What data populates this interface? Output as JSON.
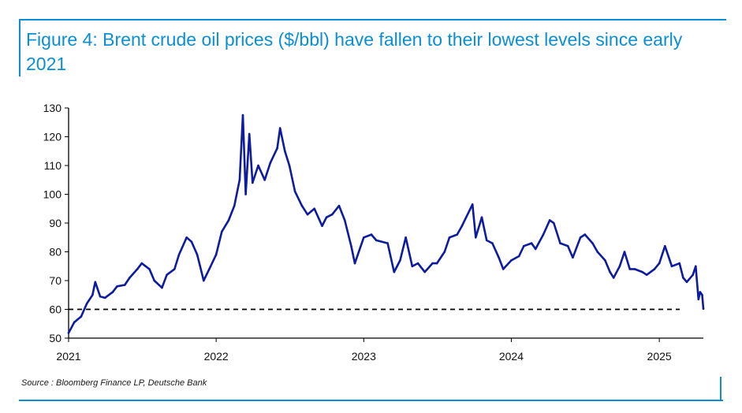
{
  "title": "Figure 4: Brent crude oil prices ($/bbl) have fallen to their lowest levels since early 2021",
  "source": "Source : Bloomberg Finance LP, Deutsche Bank",
  "colors": {
    "accent": "#0a8fd6",
    "series": "#0d1c9e",
    "reference": "#000000"
  },
  "chart_data": {
    "type": "line",
    "title": "Figure 4: Brent crude oil prices ($/bbl) have fallen to their lowest levels since early 2021",
    "xlabel": "",
    "ylabel": "",
    "ylim": [
      50,
      130
    ],
    "xlim": [
      "2021-01-01",
      "2025-04-20"
    ],
    "yticks": [
      50,
      60,
      70,
      80,
      90,
      100,
      110,
      120,
      130
    ],
    "xticks": [
      "2021",
      "2022",
      "2023",
      "2024",
      "2025"
    ],
    "grid": false,
    "legend": "none",
    "reference_line": {
      "y": 60,
      "style": "dashed"
    },
    "series": [
      {
        "x": [
          "2021-01-01",
          "2021-01-15",
          "2021-02-01",
          "2021-02-15",
          "2021-03-01",
          "2021-03-08",
          "2021-03-20",
          "2021-04-01",
          "2021-04-20",
          "2021-05-01",
          "2021-05-20",
          "2021-06-01",
          "2021-06-20",
          "2021-07-01",
          "2021-07-20",
          "2021-08-01",
          "2021-08-20",
          "2021-09-01",
          "2021-09-20",
          "2021-10-01",
          "2021-10-20",
          "2021-11-01",
          "2021-11-15",
          "2021-12-01",
          "2021-12-15",
          "2022-01-01",
          "2022-01-15",
          "2022-02-01",
          "2022-02-15",
          "2022-02-28",
          "2022-03-08",
          "2022-03-15",
          "2022-03-24",
          "2022-04-01",
          "2022-04-15",
          "2022-05-01",
          "2022-05-15",
          "2022-06-01",
          "2022-06-08",
          "2022-06-20",
          "2022-07-01",
          "2022-07-15",
          "2022-08-01",
          "2022-08-15",
          "2022-09-01",
          "2022-09-20",
          "2022-10-01",
          "2022-10-15",
          "2022-11-01",
          "2022-11-15",
          "2022-12-01",
          "2022-12-10",
          "2023-01-01",
          "2023-01-20",
          "2023-02-01",
          "2023-03-01",
          "2023-03-17",
          "2023-04-01",
          "2023-04-15",
          "2023-05-01",
          "2023-05-15",
          "2023-06-01",
          "2023-06-20",
          "2023-07-01",
          "2023-07-20",
          "2023-08-01",
          "2023-08-20",
          "2023-09-01",
          "2023-09-27",
          "2023-10-05",
          "2023-10-20",
          "2023-11-01",
          "2023-11-15",
          "2023-12-01",
          "2023-12-12",
          "2024-01-01",
          "2024-01-20",
          "2024-02-01",
          "2024-02-20",
          "2024-03-01",
          "2024-03-20",
          "2024-04-05",
          "2024-04-15",
          "2024-05-01",
          "2024-05-20",
          "2024-06-01",
          "2024-06-20",
          "2024-07-01",
          "2024-07-20",
          "2024-08-01",
          "2024-08-20",
          "2024-09-01",
          "2024-09-10",
          "2024-09-25",
          "2024-10-07",
          "2024-10-20",
          "2024-11-01",
          "2024-11-20",
          "2024-12-01",
          "2024-12-20",
          "2025-01-01",
          "2025-01-15",
          "2025-02-01",
          "2025-02-20",
          "2025-03-01",
          "2025-03-10",
          "2025-03-25",
          "2025-04-01",
          "2025-04-08",
          "2025-04-12",
          "2025-04-17",
          "2025-04-20"
        ],
        "values": [
          51.8,
          55.5,
          57.5,
          62,
          65,
          69.5,
          64.5,
          64,
          66,
          68,
          68.5,
          71,
          74,
          76,
          74,
          70,
          67.5,
          72,
          74,
          79,
          85,
          83.5,
          79,
          70,
          74,
          79,
          87,
          91,
          96,
          105,
          127.5,
          100,
          121,
          104,
          110,
          105,
          111,
          116,
          123,
          115,
          110,
          101,
          96,
          93,
          95,
          89,
          92,
          93,
          96,
          91,
          82,
          76,
          85,
          86,
          84,
          83,
          73,
          77,
          85,
          75,
          76,
          73,
          76,
          76,
          80,
          85,
          86,
          89,
          96.5,
          85,
          92,
          84,
          83,
          78,
          74,
          77,
          78.5,
          82,
          83,
          81,
          86,
          91,
          90,
          83,
          82,
          78,
          85,
          86,
          83,
          80,
          77,
          73,
          71,
          75,
          80,
          74,
          74,
          73,
          72,
          74,
          76,
          82,
          75,
          76,
          71,
          69.5,
          72,
          75,
          63.5,
          66,
          65,
          60.2
        ]
      }
    ]
  }
}
